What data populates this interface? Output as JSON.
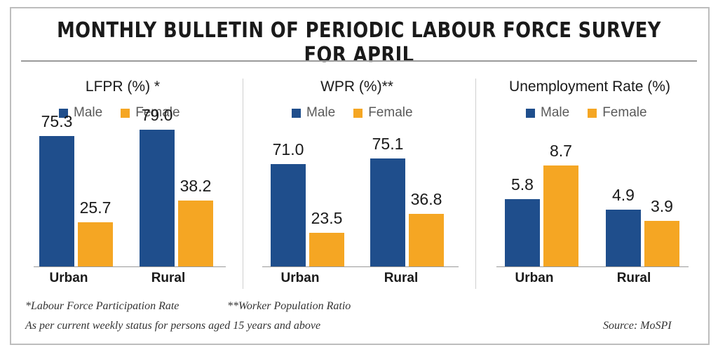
{
  "title": "MONTHLY BULLETIN OF PERIODIC LABOUR FORCE SURVEY FOR APRIL",
  "colors": {
    "male": "#1f4e8c",
    "female": "#f5a623"
  },
  "chart_data": [
    {
      "type": "bar",
      "title": "LFPR (%) *",
      "categories": [
        "Urban",
        "Rural"
      ],
      "series": [
        {
          "name": "Male",
          "values": [
            75.3,
            79.0
          ],
          "labels": [
            "75.3",
            "79.0"
          ]
        },
        {
          "name": "Female",
          "values": [
            25.7,
            38.2
          ],
          "labels": [
            "25.7",
            "38.2"
          ]
        }
      ],
      "legend": "top"
    },
    {
      "type": "bar",
      "title": "WPR (%)**",
      "categories": [
        "Urban",
        "Rural"
      ],
      "series": [
        {
          "name": "Male",
          "values": [
            71.0,
            75.1
          ],
          "labels": [
            "71.0",
            "75.1"
          ]
        },
        {
          "name": "Female",
          "values": [
            23.5,
            36.8
          ],
          "labels": [
            "23.5",
            "36.8"
          ]
        }
      ],
      "legend": "top"
    },
    {
      "type": "bar",
      "title": "Unemployment Rate (%)",
      "categories": [
        "Urban",
        "Rural"
      ],
      "series": [
        {
          "name": "Male",
          "values": [
            5.8,
            4.9
          ],
          "labels": [
            "5.8",
            "4.9"
          ]
        },
        {
          "name": "Female",
          "values": [
            8.7,
            3.9
          ],
          "labels": [
            "8.7",
            "3.9"
          ]
        }
      ],
      "legend": "top"
    }
  ],
  "footnotes": {
    "lfpr": "*Labour Force Participation Rate",
    "wpr": "**Worker Population Ratio",
    "status": "As per current weekly status for persons aged 15 years and above",
    "source": "Source: MoSPI"
  }
}
